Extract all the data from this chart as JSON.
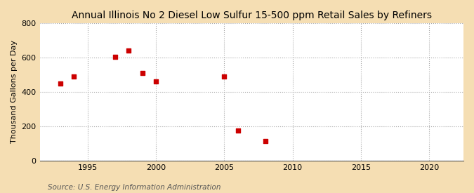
{
  "title": "Annual Illinois No 2 Diesel Low Sulfur 15-500 ppm Retail Sales by Refiners",
  "ylabel": "Thousand Gallons per Day",
  "source": "Source: U.S. Energy Information Administration",
  "fig_background_color": "#f5deb3",
  "plot_background_color": "#ffffff",
  "data_color": "#cc0000",
  "x_values": [
    1993,
    1994,
    1997,
    1998,
    1999,
    2000,
    2005,
    2006,
    2008
  ],
  "y_values": [
    450,
    490,
    605,
    640,
    510,
    462,
    490,
    175,
    115
  ],
  "xlim": [
    1991.5,
    2022.5
  ],
  "ylim": [
    0,
    800
  ],
  "xticks": [
    1995,
    2000,
    2005,
    2010,
    2015,
    2020
  ],
  "yticks": [
    0,
    200,
    400,
    600,
    800
  ],
  "marker_size": 18,
  "title_fontsize": 10,
  "label_fontsize": 8,
  "tick_fontsize": 8,
  "source_fontsize": 7.5
}
